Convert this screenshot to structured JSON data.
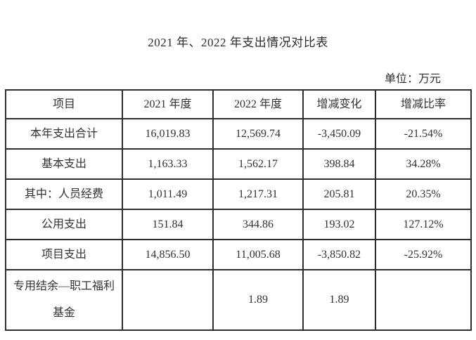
{
  "page": {
    "title": "2021 年、2022 年支出情况对比表",
    "unit_label": "单位：万元"
  },
  "table": {
    "columns": [
      "项目",
      "2021 年度",
      "2022 年度",
      "增减变化",
      "增减比率"
    ],
    "rows": [
      [
        "本年支出合计",
        "16,019.83",
        "12,569.74",
        "-3,450.09",
        "-21.54%"
      ],
      [
        "基本支出",
        "1,163.33",
        "1,562.17",
        "398.84",
        "34.28%"
      ],
      [
        "其中：人员经费",
        "1,011.49",
        "1,217.31",
        "205.81",
        "20.35%"
      ],
      [
        "公用支出",
        "151.84",
        "344.86",
        "193.02",
        "127.12%"
      ],
      [
        "项目支出",
        "14,856.50",
        "11,005.68",
        "-3,850.82",
        "-25.92%"
      ],
      [
        "专用结余—职工福利基金",
        "",
        "1.89",
        "1.89",
        ""
      ]
    ]
  }
}
